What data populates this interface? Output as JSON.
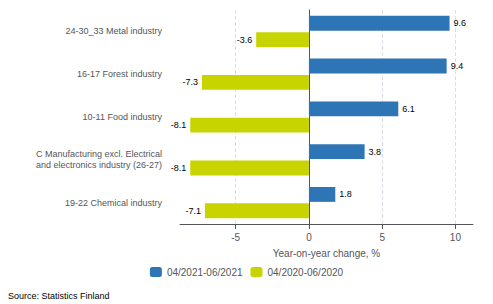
{
  "chart_data": {
    "type": "bar",
    "orientation": "horizontal",
    "categories": [
      "19-22 Chemical industry",
      "C Manufacturing excl. Electrical\nand electronics industry (26-27)",
      "10-11 Food industry",
      "16-17 Forest industry",
      "24-30_33 Metal industry"
    ],
    "series": [
      {
        "name": "04/2021-06/2021",
        "color": "#2E75B6",
        "values": [
          1.8,
          3.8,
          6.1,
          9.4,
          9.6
        ]
      },
      {
        "name": "04/2020-06/2020",
        "color": "#C8D400",
        "values": [
          -7.1,
          -8.1,
          -8.1,
          -7.3,
          -3.6
        ]
      }
    ],
    "xlabel": "Year-on-year change, %",
    "xlim": [
      -8.8,
      11.2
    ],
    "xticks": [
      -5,
      0,
      5,
      10
    ],
    "grid": true,
    "legend": "bottom",
    "data_labels": true,
    "annotations": [
      "Source: Statistics Finland"
    ]
  }
}
